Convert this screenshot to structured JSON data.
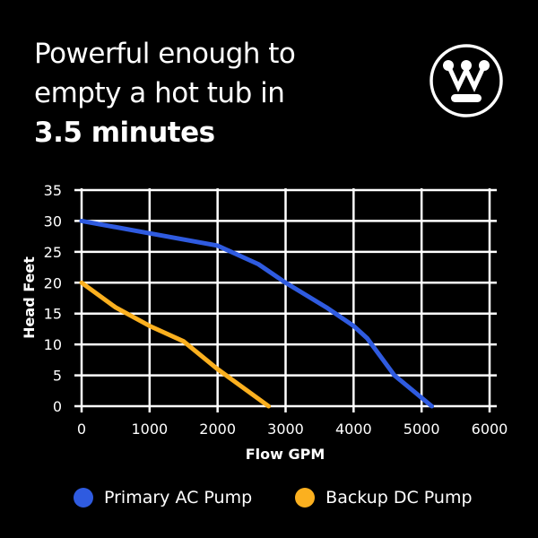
{
  "title": {
    "line1": "Powerful enough to",
    "line2": "empty a hot tub in",
    "line3": "3.5 minutes"
  },
  "logo": {
    "icon": "westinghouse-logo-icon"
  },
  "chart_data": {
    "type": "line",
    "title": "",
    "xlabel": "Flow GPM",
    "ylabel": "Head Feet",
    "xlim": [
      0,
      6000
    ],
    "ylim": [
      0,
      35
    ],
    "xticks": [
      0,
      1000,
      2000,
      3000,
      4000,
      5000,
      6000
    ],
    "yticks": [
      0,
      5,
      10,
      15,
      20,
      25,
      30,
      35
    ],
    "grid": true,
    "legend_position": "bottom",
    "series": [
      {
        "name": "Primary AC Pump",
        "color": "#2f5be0",
        "x": [
          0,
          1000,
          2000,
          2600,
          3000,
          3600,
          4000,
          4200,
          4600,
          5150
        ],
        "y": [
          30,
          28,
          26,
          23,
          20,
          16,
          13,
          11,
          5,
          0
        ]
      },
      {
        "name": "Backup DC Pump",
        "color": "#fbb01f",
        "x": [
          0,
          500,
          1000,
          1500,
          2000,
          2750
        ],
        "y": [
          20,
          16,
          13,
          10.5,
          6,
          0
        ]
      }
    ]
  }
}
